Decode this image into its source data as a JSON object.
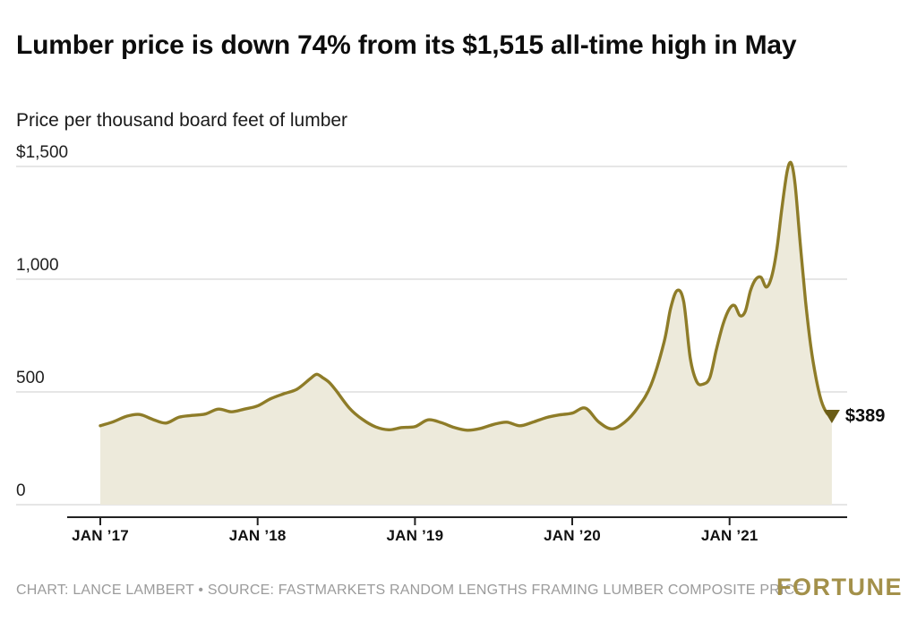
{
  "header": {
    "title": "Lumber price is down 74% from its $1,515 all-time high in May",
    "subtitle": "Price per thousand board feet of lumber"
  },
  "footer": {
    "credit": "CHART: LANCE LAMBERT • SOURCE: FASTMARKETS RANDOM LENGTHS FRAMING LUMBER COMPOSITE PRICE",
    "brand": "FORTUNE"
  },
  "annotation": {
    "end_value_label": "$389",
    "marker_icon": "down-triangle-icon"
  },
  "colors": {
    "line": "#8e7c28",
    "fill": "#edeadb",
    "marker": "#6a5c16",
    "grid": "#cccccc",
    "axis": "#222222",
    "brand": "#a3904a",
    "credit_text": "#9b9b9b"
  },
  "chart_data": {
    "type": "area",
    "title": "Lumber price is down 74% from its $1,515 all-time high in May",
    "subtitle": "Price per thousand board feet of lumber",
    "ylabel": "Price per thousand board feet of lumber",
    "ylim": [
      0,
      1500
    ],
    "y_ticks": [
      0,
      500,
      1000,
      1500
    ],
    "y_tick_labels": [
      "0",
      "500",
      "1,000",
      "$1,500"
    ],
    "x_tick_months": [
      0,
      12,
      24,
      36,
      48
    ],
    "x_tick_labels": [
      "JAN ’17",
      "JAN ’18",
      "JAN ’19",
      "JAN ’20",
      "JAN ’21"
    ],
    "x_months": [
      0,
      1,
      2,
      3,
      4,
      5,
      6,
      7,
      8,
      9,
      10,
      11,
      12,
      13,
      14,
      15,
      16,
      16.5,
      17,
      17.5,
      18,
      19,
      20,
      21,
      22,
      23,
      24,
      25,
      26,
      27,
      28,
      29,
      30,
      31,
      32,
      33,
      34,
      35,
      36,
      37,
      38,
      39,
      40,
      41,
      42,
      43,
      43.5,
      44,
      44.5,
      45,
      45.5,
      46,
      46.5,
      47,
      47.5,
      48,
      48.4,
      48.8,
      49.2,
      49.6,
      50,
      50.4,
      50.8,
      51.2,
      51.6,
      52,
      52.4,
      52.7,
      53,
      53.4,
      53.8,
      54.2,
      54.6,
      55,
      55.4,
      55.8
    ],
    "values": [
      350,
      368,
      392,
      400,
      378,
      362,
      388,
      396,
      402,
      424,
      412,
      424,
      438,
      470,
      492,
      512,
      558,
      578,
      562,
      540,
      505,
      428,
      378,
      345,
      332,
      342,
      346,
      376,
      364,
      342,
      330,
      338,
      356,
      366,
      350,
      366,
      386,
      398,
      406,
      428,
      368,
      336,
      366,
      430,
      530,
      720,
      870,
      950,
      900,
      650,
      545,
      535,
      565,
      690,
      800,
      870,
      882,
      838,
      858,
      950,
      1000,
      1008,
      965,
      1010,
      1130,
      1320,
      1480,
      1515,
      1420,
      1150,
      900,
      700,
      560,
      460,
      408,
      389
    ],
    "all_time_high": 1515,
    "latest_value": 389,
    "end_label": "$389",
    "grid": true,
    "legend": "none"
  }
}
